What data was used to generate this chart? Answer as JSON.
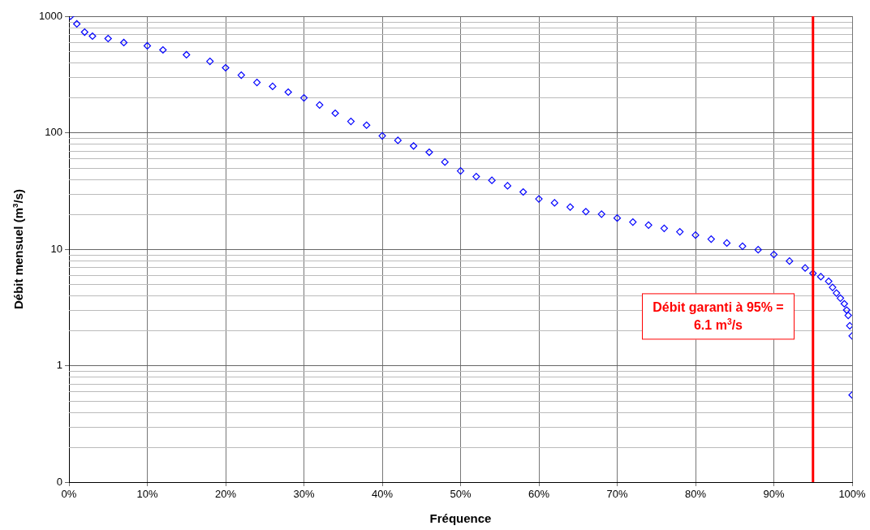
{
  "chart_data": {
    "type": "scatter",
    "xlabel": "Fréquence",
    "ylabel": "Débit mensuel (m$^{3}$/s)",
    "marker": "diamond",
    "grid": true,
    "legend": false,
    "log": "y",
    "xlim": [
      0,
      100
    ],
    "xticks": [
      {
        "value": 0,
        "label": "0%"
      },
      {
        "value": 10,
        "label": "10%"
      },
      {
        "value": 20,
        "label": "20%"
      },
      {
        "value": 30,
        "label": "30%"
      },
      {
        "value": 40,
        "label": "40%"
      },
      {
        "value": 50,
        "label": "50%"
      },
      {
        "value": 60,
        "label": "60%"
      },
      {
        "value": 70,
        "label": "70%"
      },
      {
        "value": 80,
        "label": "80%"
      },
      {
        "value": 90,
        "label": "90%"
      },
      {
        "value": 100,
        "label": "100%"
      }
    ],
    "ylim": [
      0.1,
      1000
    ],
    "yticks": [
      {
        "value": 0.1,
        "label": "0"
      },
      1,
      10,
      100,
      1000
    ],
    "series": [
      {
        "color": "#0000ff",
        "x": [
          0.2,
          1,
          2,
          3,
          5,
          7,
          10,
          12,
          15,
          18,
          20,
          22,
          24,
          26,
          28,
          30,
          32,
          34,
          36,
          38,
          40,
          42,
          44,
          46,
          48,
          50,
          52,
          54,
          56,
          58,
          60,
          62,
          64,
          66,
          68,
          70,
          72,
          74,
          76,
          78,
          80,
          82,
          84,
          86,
          88,
          90,
          92,
          94,
          95,
          96,
          97,
          97.5,
          98,
          98.5,
          99,
          99.3,
          99.5,
          99.7,
          100,
          100
        ],
        "values": [
          1000,
          859,
          731,
          675,
          643,
          594,
          557,
          514,
          467,
          410,
          361,
          312,
          270,
          250,
          223,
          199,
          173,
          147,
          125,
          116,
          94,
          86,
          77,
          68,
          56,
          47,
          42,
          39,
          35,
          31,
          27,
          25,
          23,
          21,
          20,
          18.5,
          17.1,
          16.1,
          15.1,
          14.1,
          13.2,
          12.2,
          11.3,
          10.6,
          9.9,
          9.0,
          7.9,
          6.9,
          6.2,
          5.8,
          5.3,
          4.7,
          4.2,
          3.8,
          3.4,
          3.0,
          2.7,
          2.2,
          1.8,
          0.56
        ]
      }
    ],
    "ref_lines": [
      {
        "axis": "x",
        "value": 95,
        "color": "#ff0000"
      }
    ],
    "annotations": [
      "Débit garanti à 95% = 6.1 m$^{3}$/s"
    ]
  }
}
